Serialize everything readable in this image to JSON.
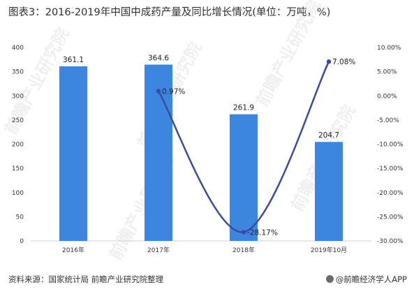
{
  "title": "图表3：2016-2019年中国中成药产量及同比增长情况(单位：万吨，%)",
  "source": "资料来源：国家统计局 前瞻产业研究院整理",
  "brand": "@前瞻经济学人APP",
  "watermark": "前瞻产业研究院",
  "colors": {
    "bar": "#3d86e0",
    "line": "#3b4a9e",
    "axis": "#d0d0d0"
  },
  "chart_data": {
    "type": "bar",
    "categories": [
      "2016年",
      "2017年",
      "2018年",
      "2019年10月"
    ],
    "series": [
      {
        "values": [
          361.1,
          364.6,
          261.9,
          204.7
        ],
        "labels": [
          "361.1",
          "364.6",
          "261.9",
          "204.7"
        ]
      },
      {
        "values": [
          null,
          0.97,
          -28.17,
          7.08
        ],
        "labels": [
          "",
          "0.97%",
          "-28.17%",
          "7.08%"
        ],
        "axis": "right",
        "type": "line"
      }
    ],
    "y_ticks": [
      "0",
      "50",
      "100",
      "150",
      "200",
      "250",
      "300",
      "350",
      "400"
    ],
    "y2_ticks": [
      "-30.00%",
      "-25.00%",
      "-20.00%",
      "-15.00%",
      "-10.00%",
      "-5.00%",
      "0.00%",
      "5.00%",
      "10.00%"
    ],
    "ylim": [
      0,
      400
    ],
    "y2lim": [
      -30,
      10
    ],
    "legend": "none",
    "grid": false
  }
}
